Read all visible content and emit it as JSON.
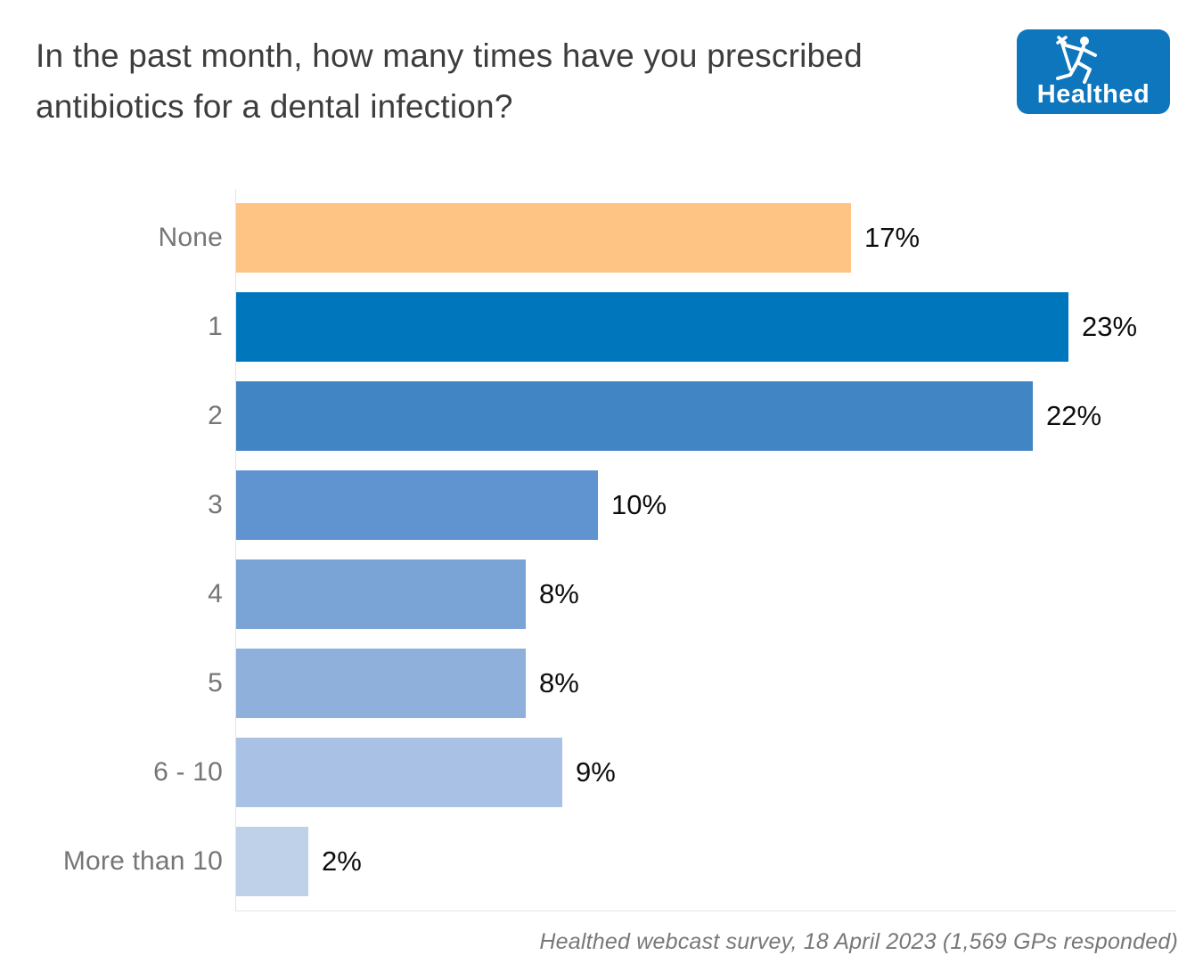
{
  "header": {
    "title": "In the past month, how many times have you prescribed antibiotics for a dental infection?",
    "logo": {
      "text": "Healthed",
      "bg_color": "#0e76bd",
      "fg_color": "#ffffff"
    }
  },
  "chart_data": {
    "type": "bar",
    "orientation": "horizontal",
    "title": "In the past month, how many times have you prescribed antibiotics for a dental infection?",
    "categories": [
      "None",
      "1",
      "2",
      "3",
      "4",
      "5",
      "6 - 10",
      "More than 10"
    ],
    "values": [
      17,
      23,
      22,
      10,
      8,
      8,
      9,
      2
    ],
    "value_labels": [
      "17%",
      "23%",
      "22%",
      "10%",
      "8%",
      "8%",
      "9%",
      "2%"
    ],
    "bar_colors": [
      "#fdc484",
      "#0077bd",
      "#4285c5",
      "#6094d0",
      "#7aa4d6",
      "#90b0dc",
      "#a9c1e4",
      "#bfd0e9"
    ],
    "xlabel": "",
    "ylabel": "",
    "xlim": [
      0,
      26
    ],
    "grid": false,
    "legend": false,
    "value_label_color": "#0d0d0d",
    "category_label_color": "#767676",
    "axis_line_color": "#e4e4e4"
  },
  "footer": {
    "source": "Healthed webcast survey, 18 April 2023 (1,569 GPs responded)"
  }
}
